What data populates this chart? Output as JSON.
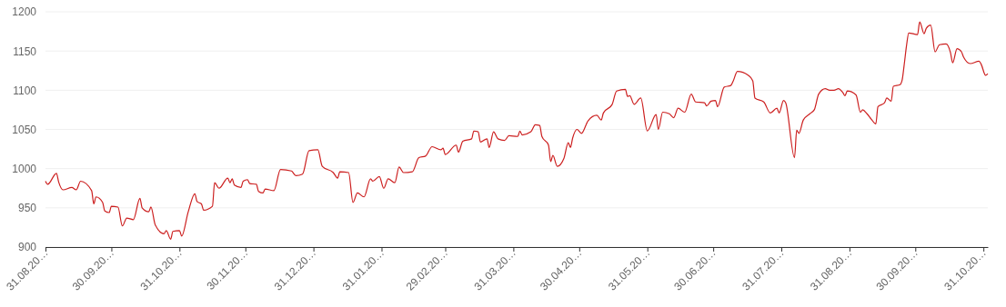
{
  "chart_data": {
    "type": "line",
    "grid": "y",
    "marker": "none",
    "line_style": "solid",
    "xlim": [
      "2019-08-31",
      "2020-11-02"
    ],
    "xticks": [
      {
        "value": "2019-08-31",
        "label": "31.08.20…"
      },
      {
        "value": "2019-09-30",
        "label": "30.09.20…"
      },
      {
        "value": "2019-10-31",
        "label": "31.10.20…"
      },
      {
        "value": "2019-11-30",
        "label": "30.11.20…"
      },
      {
        "value": "2019-12-31",
        "label": "31.12.20…"
      },
      {
        "value": "2020-01-31",
        "label": "31.01.20…"
      },
      {
        "value": "2020-02-29",
        "label": "29.02.20…"
      },
      {
        "value": "2020-03-31",
        "label": "31.03.20…"
      },
      {
        "value": "2020-04-30",
        "label": "30.04.20…"
      },
      {
        "value": "2020-05-31",
        "label": "31.05.20…"
      },
      {
        "value": "2020-06-30",
        "label": "30.06.20…"
      },
      {
        "value": "2020-07-31",
        "label": "31.07.20…"
      },
      {
        "value": "2020-08-31",
        "label": "31.08.20…"
      },
      {
        "value": "2020-09-30",
        "label": "30.09.20…"
      },
      {
        "value": "2020-10-31",
        "label": "31.10.20…"
      }
    ],
    "ylim": [
      900,
      1200
    ],
    "yticks": [
      900,
      950,
      1000,
      1050,
      1100,
      1150,
      1200
    ],
    "series": [
      {
        "color": "#cc1f1f",
        "x": [
          "2019-08-31",
          "2019-09-01",
          "2019-09-05",
          "2019-09-06",
          "2019-09-08",
          "2019-09-12",
          "2019-09-14",
          "2019-09-16",
          "2019-09-21",
          "2019-09-22",
          "2019-09-23",
          "2019-09-26",
          "2019-09-27",
          "2019-09-29",
          "2019-09-30",
          "2019-10-03",
          "2019-10-05",
          "2019-10-07",
          "2019-10-10",
          "2019-10-13",
          "2019-10-14",
          "2019-10-17",
          "2019-10-18",
          "2019-10-20",
          "2019-10-24",
          "2019-10-25",
          "2019-10-27",
          "2019-10-28",
          "2019-10-31",
          "2019-11-01",
          "2019-11-04",
          "2019-11-07",
          "2019-11-08",
          "2019-11-10",
          "2019-11-11",
          "2019-11-15",
          "2019-11-16",
          "2019-11-18",
          "2019-11-22",
          "2019-11-23",
          "2019-11-24",
          "2019-11-25",
          "2019-11-28",
          "2019-11-29",
          "2019-12-01",
          "2019-12-02",
          "2019-12-05",
          "2019-12-06",
          "2019-12-08",
          "2019-12-09",
          "2019-12-13",
          "2019-12-16",
          "2019-12-21",
          "2019-12-23",
          "2019-12-26",
          "2019-12-29",
          "2020-01-02",
          "2020-01-04",
          "2020-01-09",
          "2020-01-11",
          "2020-01-12",
          "2020-01-16",
          "2020-01-18",
          "2020-01-20",
          "2020-01-23",
          "2020-01-26",
          "2020-01-27",
          "2020-01-30",
          "2020-02-01",
          "2020-02-03",
          "2020-02-06",
          "2020-02-08",
          "2020-02-10",
          "2020-02-14",
          "2020-02-17",
          "2020-02-20",
          "2020-02-23",
          "2020-02-27",
          "2020-02-28",
          "2020-02-29",
          "2020-03-05",
          "2020-03-06",
          "2020-03-08",
          "2020-03-12",
          "2020-03-13",
          "2020-03-15",
          "2020-03-16",
          "2020-03-19",
          "2020-03-20",
          "2020-03-22",
          "2020-03-24",
          "2020-03-27",
          "2020-03-29",
          "2020-04-02",
          "2020-04-03",
          "2020-04-04",
          "2020-04-08",
          "2020-04-10",
          "2020-04-12",
          "2020-04-13",
          "2020-04-16",
          "2020-04-17",
          "2020-04-18",
          "2020-04-20",
          "2020-04-23",
          "2020-04-25",
          "2020-04-26",
          "2020-04-27",
          "2020-04-29",
          "2020-05-01",
          "2020-05-04",
          "2020-05-08",
          "2020-05-10",
          "2020-05-11",
          "2020-05-15",
          "2020-05-17",
          "2020-05-21",
          "2020-05-22",
          "2020-05-23",
          "2020-05-25",
          "2020-05-28",
          "2020-05-31",
          "2020-06-04",
          "2020-06-05",
          "2020-06-07",
          "2020-06-10",
          "2020-06-12",
          "2020-06-14",
          "2020-06-17",
          "2020-06-20",
          "2020-06-22",
          "2020-06-26",
          "2020-06-27",
          "2020-06-29",
          "2020-07-01",
          "2020-07-02",
          "2020-07-05",
          "2020-07-08",
          "2020-07-09",
          "2020-07-11",
          "2020-07-16",
          "2020-07-18",
          "2020-07-19",
          "2020-07-23",
          "2020-07-26",
          "2020-07-29",
          "2020-07-30",
          "2020-08-01",
          "2020-08-02",
          "2020-08-06",
          "2020-08-07",
          "2020-08-08",
          "2020-08-10",
          "2020-08-13",
          "2020-08-15",
          "2020-08-17",
          "2020-08-20",
          "2020-08-22",
          "2020-08-24",
          "2020-08-26",
          "2020-08-28",
          "2020-08-29",
          "2020-08-30",
          "2020-09-03",
          "2020-09-05",
          "2020-09-06",
          "2020-09-08",
          "2020-09-10",
          "2020-09-12",
          "2020-09-13",
          "2020-09-16",
          "2020-09-17",
          "2020-09-19",
          "2020-09-20",
          "2020-09-23",
          "2020-09-24",
          "2020-09-25",
          "2020-09-26",
          "2020-09-27",
          "2020-10-01",
          "2020-10-02",
          "2020-10-04",
          "2020-10-05",
          "2020-10-07",
          "2020-10-09",
          "2020-10-11",
          "2020-10-14",
          "2020-10-16",
          "2020-10-17",
          "2020-10-19",
          "2020-10-21",
          "2020-10-22",
          "2020-10-25",
          "2020-10-29",
          "2020-10-30",
          "2020-11-01",
          "2020-11-02"
        ],
        "values": [
          984,
          980,
          994,
          983,
          973,
          976,
          973,
          984,
          972,
          955,
          964,
          957,
          946,
          944,
          952,
          951,
          927,
          937,
          935,
          962,
          950,
          945,
          951,
          928,
          917,
          921,
          910,
          920,
          921,
          914,
          945,
          968,
          958,
          955,
          947,
          952,
          982,
          975,
          988,
          982,
          987,
          979,
          976,
          984,
          986,
          981,
          980,
          971,
          969,
          974,
          972,
          999,
          997,
          991,
          993,
          1023,
          1024,
          1003,
          995,
          988,
          996,
          995,
          957,
          969,
          964,
          987,
          984,
          990,
          975,
          987,
          982,
          1002,
          995,
          996,
          1014,
          1016,
          1028,
          1024,
          1026,
          1018,
          1030,
          1021,
          1035,
          1038,
          1048,
          1047,
          1034,
          1038,
          1027,
          1047,
          1038,
          1036,
          1042,
          1041,
          1048,
          1043,
          1047,
          1056,
          1055,
          1041,
          1030,
          1009,
          1017,
          1003,
          1013,
          1033,
          1027,
          1039,
          1050,
          1045,
          1061,
          1068,
          1062,
          1071,
          1082,
          1099,
          1101,
          1092,
          1093,
          1082,
          1090,
          1048,
          1069,
          1050,
          1072,
          1070,
          1065,
          1077,
          1072,
          1095,
          1085,
          1084,
          1080,
          1086,
          1087,
          1079,
          1104,
          1106,
          1111,
          1124,
          1119,
          1112,
          1090,
          1085,
          1071,
          1077,
          1071,
          1087,
          1084,
          1014,
          1049,
          1045,
          1062,
          1070,
          1075,
          1095,
          1102,
          1100,
          1100,
          1102,
          1097,
          1093,
          1099,
          1094,
          1072,
          1075,
          1070,
          1063,
          1057,
          1079,
          1084,
          1090,
          1086,
          1105,
          1107,
          1113,
          1134,
          1157,
          1173,
          1171,
          1187,
          1172,
          1179,
          1183,
          1149,
          1158,
          1159,
          1148,
          1135,
          1153,
          1149,
          1142,
          1134,
          1137,
          1133,
          1119,
          1121
        ]
      }
    ]
  }
}
